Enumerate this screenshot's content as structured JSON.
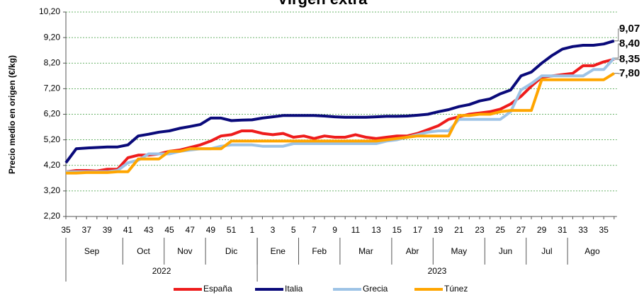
{
  "chart_data": {
    "type": "line",
    "title": "Virgen extra",
    "ylabel": "Precio medio en origen (€/kg)",
    "categories": [
      "35",
      null,
      "37",
      null,
      "39",
      null,
      "41",
      null,
      "43",
      null,
      "45",
      null,
      "47",
      null,
      "49",
      null,
      "51",
      null,
      "1",
      null,
      "3",
      null,
      "5",
      null,
      "7",
      null,
      "9",
      null,
      "11",
      null,
      "13",
      null,
      "15",
      null,
      "17",
      null,
      "19",
      null,
      "21",
      null,
      "23",
      null,
      "25",
      null,
      "27",
      null,
      "29",
      null,
      "31",
      null,
      "33",
      null,
      "35",
      null
    ],
    "months": [
      {
        "label": "Sep",
        "from": 0
      },
      {
        "label": "Oct",
        "from": 6
      },
      {
        "label": "Nov",
        "from": 10
      },
      {
        "label": "Dic",
        "from": 14
      },
      {
        "label": "Ene",
        "from": 19
      },
      {
        "label": "Feb",
        "from": 23
      },
      {
        "label": "Mar",
        "from": 27
      },
      {
        "label": "Abr",
        "from": 32
      },
      {
        "label": "May",
        "from": 36
      },
      {
        "label": "Jun",
        "from": 41
      },
      {
        "label": "Jul",
        "from": 45
      },
      {
        "label": "Ago",
        "from": 49
      }
    ],
    "years": [
      {
        "label": "2022",
        "from": 0
      },
      {
        "label": "2023",
        "from": 19
      }
    ],
    "ylim": [
      2.2,
      10.2
    ],
    "yticks": [
      {
        "value": 2.2,
        "label": "2,20"
      },
      {
        "value": 3.2,
        "label": "3,20"
      },
      {
        "value": 4.2,
        "label": "4,20"
      },
      {
        "value": 5.2,
        "label": "5,20"
      },
      {
        "value": 6.2,
        "label": "6,20"
      },
      {
        "value": 7.2,
        "label": "7,20"
      },
      {
        "value": 8.2,
        "label": "8,20"
      },
      {
        "value": 9.2,
        "label": "9,20"
      },
      {
        "value": 10.2,
        "label": "10,20"
      }
    ],
    "grid": true,
    "legend": "bottom",
    "series": [
      {
        "name": "España",
        "color": "#ee1c1c",
        "label_color": "#c00000",
        "end_label": "8,35",
        "values": [
          3.95,
          4.0,
          4.0,
          3.98,
          4.05,
          4.05,
          4.5,
          4.6,
          4.6,
          4.65,
          4.75,
          4.8,
          4.9,
          5.0,
          5.15,
          5.35,
          5.4,
          5.55,
          5.55,
          5.45,
          5.4,
          5.45,
          5.3,
          5.35,
          5.25,
          5.35,
          5.3,
          5.3,
          5.4,
          5.3,
          5.25,
          5.3,
          5.35,
          5.35,
          5.45,
          5.6,
          5.75,
          6.0,
          6.1,
          6.2,
          6.25,
          6.3,
          6.4,
          6.6,
          6.9,
          7.3,
          7.65,
          7.7,
          7.75,
          7.8,
          8.1,
          8.1,
          8.25,
          8.35
        ]
      },
      {
        "name": "Italia",
        "color": "#0a0a7a",
        "label_color": "#1f3864",
        "end_label": "9,07",
        "values": [
          4.3,
          4.85,
          4.88,
          4.9,
          4.92,
          4.92,
          5.0,
          5.35,
          5.42,
          5.5,
          5.55,
          5.65,
          5.72,
          5.8,
          6.05,
          6.05,
          5.95,
          5.97,
          5.98,
          6.05,
          6.1,
          6.15,
          6.15,
          6.15,
          6.15,
          6.13,
          6.1,
          6.08,
          6.08,
          6.08,
          6.1,
          6.12,
          6.12,
          6.13,
          6.16,
          6.2,
          6.3,
          6.38,
          6.5,
          6.58,
          6.72,
          6.8,
          7.0,
          7.15,
          7.7,
          7.85,
          8.2,
          8.5,
          8.75,
          8.85,
          8.9,
          8.9,
          8.95,
          9.07
        ]
      },
      {
        "name": "Grecia",
        "color": "#9dc3e6",
        "label_color": "#5b9bd5",
        "end_label": "8,40",
        "values": [
          3.95,
          3.95,
          3.95,
          3.95,
          3.95,
          4.0,
          4.3,
          4.4,
          4.65,
          4.65,
          4.65,
          4.75,
          4.8,
          4.85,
          4.85,
          4.95,
          5.0,
          5.0,
          5.0,
          4.95,
          4.95,
          4.95,
          5.05,
          5.05,
          5.05,
          5.05,
          5.05,
          5.05,
          5.05,
          5.05,
          5.05,
          5.15,
          5.2,
          5.3,
          5.4,
          5.5,
          5.55,
          5.55,
          6.0,
          6.0,
          6.0,
          6.0,
          6.0,
          6.3,
          7.15,
          7.4,
          7.7,
          7.7,
          7.7,
          7.7,
          7.7,
          7.95,
          7.95,
          8.4
        ]
      },
      {
        "name": "Túnez",
        "color": "#ffa500",
        "label_color": "#f4a030",
        "end_label": "7,80",
        "values": [
          3.9,
          3.9,
          3.92,
          3.92,
          3.92,
          3.95,
          3.95,
          4.45,
          4.45,
          4.45,
          4.75,
          4.75,
          4.85,
          4.85,
          4.85,
          4.85,
          5.15,
          5.15,
          5.15,
          5.15,
          5.15,
          5.15,
          5.15,
          5.15,
          5.15,
          5.15,
          5.15,
          5.15,
          5.15,
          5.15,
          5.15,
          5.2,
          5.25,
          5.3,
          5.35,
          5.35,
          5.35,
          5.35,
          6.15,
          6.15,
          6.2,
          6.2,
          6.3,
          6.35,
          6.35,
          6.35,
          7.55,
          7.55,
          7.55,
          7.55,
          7.55,
          7.55,
          7.55,
          7.8
        ]
      }
    ]
  }
}
